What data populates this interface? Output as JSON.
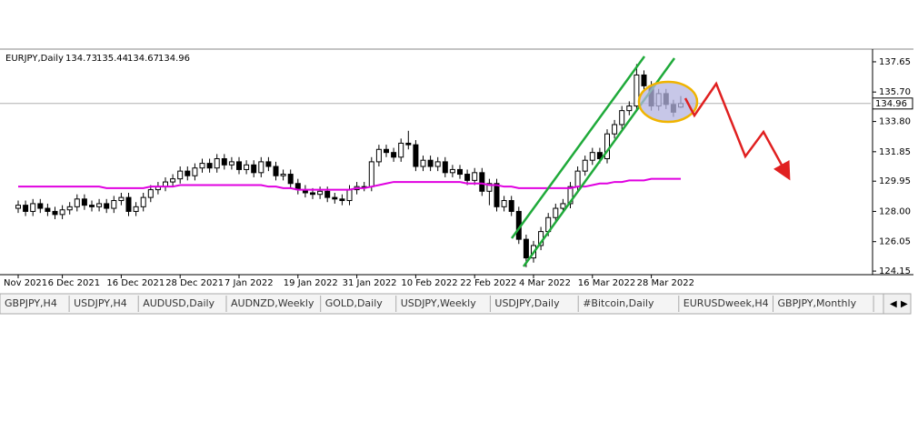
{
  "chart_data": {
    "type": "candlestick",
    "title": "EURJPY,Daily",
    "categories": [
      "Nov 2021",
      null,
      null,
      null,
      null,
      null,
      "6 Dec 2021",
      null,
      null,
      null,
      null,
      null,
      null,
      null,
      "16 Dec 2021",
      null,
      null,
      null,
      null,
      null,
      null,
      null,
      "28 Dec 2021",
      null,
      null,
      null,
      null,
      null,
      null,
      null,
      "7 Jan 2022",
      null,
      null,
      null,
      null,
      null,
      null,
      null,
      "19 Jan 2022",
      null,
      null,
      null,
      null,
      null,
      null,
      null,
      "31 Jan 2022",
      null,
      null,
      null,
      null,
      null,
      null,
      null,
      "10 Feb 2022",
      null,
      null,
      null,
      null,
      null,
      null,
      null,
      "22 Feb 2022",
      null,
      null,
      null,
      null,
      null,
      null,
      null,
      "4 Mar 2022",
      null,
      null,
      null,
      null,
      null,
      null,
      null,
      "16 Mar 2022",
      null,
      null,
      null,
      null,
      null,
      null,
      null,
      "28 Mar 2022",
      null,
      null,
      null,
      null
    ],
    "open": [
      128.2,
      128.4,
      128.0,
      128.5,
      128.2,
      128.0,
      127.8,
      128.1,
      128.3,
      128.8,
      128.4,
      128.3,
      128.5,
      128.2,
      128.7,
      128.9,
      128.0,
      128.3,
      128.9,
      129.4,
      129.6,
      129.9,
      130.1,
      130.6,
      130.3,
      130.8,
      131.1,
      130.8,
      131.4,
      131.0,
      131.2,
      130.7,
      131.0,
      130.5,
      131.2,
      130.9,
      130.3,
      130.4,
      129.8,
      129.4,
      129.2,
      129.1,
      129.3,
      128.9,
      128.8,
      128.7,
      129.4,
      129.6,
      129.6,
      131.2,
      132.0,
      131.8,
      131.5,
      132.4,
      132.3,
      130.9,
      131.3,
      130.9,
      131.2,
      130.5,
      130.7,
      130.4,
      130.0,
      130.5,
      129.3,
      129.8,
      128.3,
      128.7,
      128.0,
      126.2,
      125.0,
      125.8,
      126.7,
      127.6,
      128.2,
      128.5,
      129.6,
      130.6,
      131.3,
      131.8,
      131.4,
      133.0,
      133.6,
      134.5,
      134.8,
      136.8,
      136.1,
      134.8,
      135.6,
      134.9,
      134.73
    ],
    "high": [
      128.7,
      128.7,
      128.8,
      128.8,
      128.5,
      128.3,
      128.4,
      128.6,
      129.1,
      129.1,
      128.7,
      128.8,
      128.8,
      129.0,
      129.2,
      129.2,
      128.6,
      129.2,
      129.7,
      129.9,
      130.2,
      130.4,
      130.9,
      130.9,
      131.1,
      131.4,
      131.4,
      131.7,
      131.7,
      131.5,
      131.5,
      131.3,
      131.3,
      131.5,
      131.5,
      131.2,
      130.7,
      130.7,
      130.1,
      129.7,
      129.5,
      129.6,
      129.6,
      129.2,
      129.1,
      129.7,
      129.9,
      129.9,
      131.5,
      132.3,
      132.3,
      132.1,
      132.7,
      133.2,
      132.6,
      131.6,
      131.6,
      131.5,
      131.5,
      131.0,
      131.0,
      130.7,
      130.8,
      130.8,
      130.1,
      130.1,
      129.0,
      129.0,
      128.3,
      126.5,
      126.1,
      127.0,
      127.9,
      128.5,
      128.8,
      129.9,
      130.9,
      131.6,
      132.1,
      132.1,
      133.3,
      133.9,
      134.8,
      135.1,
      137.5,
      137.1,
      136.4,
      135.9,
      135.9,
      135.2,
      135.44
    ],
    "low": [
      127.9,
      127.7,
      127.7,
      127.9,
      127.7,
      127.5,
      127.5,
      127.8,
      128.0,
      128.1,
      128.0,
      128.0,
      127.9,
      127.9,
      128.4,
      127.7,
      127.7,
      128.0,
      128.6,
      129.1,
      129.3,
      129.6,
      129.8,
      130.0,
      130.0,
      130.5,
      130.5,
      130.5,
      130.7,
      130.7,
      130.4,
      130.4,
      130.2,
      130.2,
      130.6,
      130.0,
      130.0,
      129.5,
      129.1,
      128.9,
      128.8,
      128.8,
      128.6,
      128.5,
      128.4,
      128.4,
      129.1,
      129.3,
      129.3,
      130.9,
      131.5,
      131.2,
      131.2,
      132.0,
      130.6,
      130.6,
      130.6,
      130.6,
      130.2,
      130.2,
      130.1,
      129.7,
      129.7,
      129.0,
      128.4,
      128.0,
      128.0,
      127.7,
      125.9,
      124.4,
      124.7,
      125.5,
      126.4,
      127.3,
      127.9,
      128.2,
      129.3,
      130.3,
      131.0,
      131.1,
      131.1,
      132.7,
      133.3,
      134.2,
      134.5,
      135.8,
      134.5,
      134.5,
      134.6,
      134.1,
      134.67
    ],
    "close": [
      128.4,
      128.0,
      128.5,
      128.2,
      128.0,
      127.8,
      128.1,
      128.3,
      128.8,
      128.4,
      128.3,
      128.5,
      128.2,
      128.7,
      128.9,
      128.0,
      128.3,
      128.9,
      129.4,
      129.6,
      129.9,
      130.1,
      130.6,
      130.3,
      130.8,
      131.1,
      130.8,
      131.4,
      131.0,
      131.2,
      130.7,
      131.0,
      130.5,
      131.2,
      130.9,
      130.3,
      130.4,
      129.8,
      129.4,
      129.2,
      129.1,
      129.3,
      128.9,
      128.8,
      128.7,
      129.4,
      129.6,
      129.6,
      131.2,
      132.0,
      131.8,
      131.5,
      132.4,
      132.3,
      130.9,
      131.3,
      130.9,
      131.2,
      130.5,
      130.7,
      130.4,
      130.0,
      130.5,
      129.3,
      129.8,
      128.3,
      128.7,
      128.0,
      126.2,
      125.0,
      125.8,
      126.7,
      127.6,
      128.2,
      128.5,
      129.6,
      130.6,
      131.3,
      131.8,
      131.4,
      133.0,
      133.6,
      134.5,
      134.8,
      136.8,
      136.1,
      134.8,
      135.6,
      134.9,
      134.4,
      134.96
    ],
    "up_color": "#ffffff",
    "down_color": "#000000",
    "moving_average": {
      "color": "#e000e0",
      "values": [
        129.6,
        129.6,
        129.6,
        129.6,
        129.6,
        129.6,
        129.6,
        129.6,
        129.6,
        129.6,
        129.6,
        129.6,
        129.5,
        129.5,
        129.5,
        129.5,
        129.5,
        129.5,
        129.6,
        129.6,
        129.6,
        129.6,
        129.7,
        129.7,
        129.7,
        129.7,
        129.7,
        129.7,
        129.7,
        129.7,
        129.7,
        129.7,
        129.7,
        129.7,
        129.6,
        129.6,
        129.5,
        129.5,
        129.4,
        129.4,
        129.4,
        129.4,
        129.4,
        129.4,
        129.4,
        129.4,
        129.5,
        129.5,
        129.6,
        129.7,
        129.8,
        129.9,
        129.9,
        129.9,
        129.9,
        129.9,
        129.9,
        129.9,
        129.9,
        129.9,
        129.9,
        129.8,
        129.8,
        129.8,
        129.7,
        129.7,
        129.6,
        129.6,
        129.5,
        129.5,
        129.5,
        129.5,
        129.5,
        129.5,
        129.5,
        129.5,
        129.6,
        129.6,
        129.7,
        129.8,
        129.8,
        129.9,
        129.9,
        130.0,
        130.0,
        130.0,
        130.1,
        130.1,
        130.1,
        130.1,
        130.1
      ]
    },
    "ylim": [
      123.92,
      138.41
    ],
    "yticks": [
      137.65,
      {
        "value": 135.7,
        "label": "135.70"
      },
      {
        "value": 133.8,
        "label": "133.80"
      },
      131.85,
      129.95,
      {
        "value": 128,
        "label": "128.00"
      },
      126.05,
      124.15
    ]
  },
  "tabs": [
    "GBPJPY,H4",
    "USDJPY,H4",
    "AUDUSD,Daily",
    "AUDNZD,Weekly",
    "GOLD,Daily",
    "USDJPY,Weekly",
    "USDJPY,Daily",
    "#Bitcoin,Daily",
    "EURUSDweek,H4",
    "GBPJPY,Monthly"
  ]
}
